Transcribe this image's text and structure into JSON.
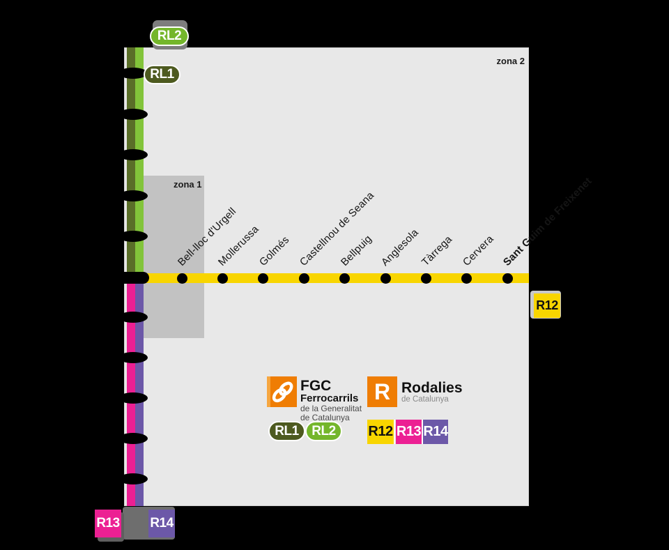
{
  "zones": {
    "zona1": "zona 1",
    "zona2": "zona 2"
  },
  "badges": {
    "rl1": "RL1",
    "rl2": "RL2",
    "r12": "R12",
    "r13": "R13",
    "r14": "R14"
  },
  "line_colors": {
    "rl1_olive": "#5a6e28",
    "rl2_green": "#82c43a",
    "r12_yellow": "#f8d500",
    "r13_pink": "#ec2093",
    "r14_purple": "#6c58a8",
    "operator_orange": "#ef7d04"
  },
  "stations": [
    {
      "name": "Bell-lloc d'Urgell",
      "emphasis": false
    },
    {
      "name": "Mollerussa",
      "emphasis": false
    },
    {
      "name": "Golmés",
      "emphasis": false
    },
    {
      "name": "Castellnou de Seana",
      "emphasis": false
    },
    {
      "name": "Bellpuig",
      "emphasis": false
    },
    {
      "name": "Anglesola",
      "emphasis": false
    },
    {
      "name": "Tàrrega",
      "emphasis": false
    },
    {
      "name": "Cervera",
      "emphasis": false
    },
    {
      "name": "Sant Guim de Freixenet",
      "emphasis": true
    }
  ],
  "vertical_ticks_above_junction": 5,
  "vertical_ticks_below_junction": 5,
  "legend": {
    "fgc": {
      "acronym": "FGC",
      "line2": "Ferrocarrils",
      "line3": "de la Generalitat",
      "line4": "de Catalunya"
    },
    "rodalies": {
      "symbol": "R",
      "name": "Rodalies",
      "sub": "de Catalunya"
    }
  }
}
